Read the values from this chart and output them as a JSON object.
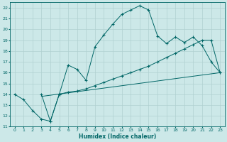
{
  "xlabel": "Humidex (Indice chaleur)",
  "bg_color": "#cce8e8",
  "grid_color": "#b0d0d0",
  "line_color": "#006666",
  "xlim": [
    -0.5,
    23.5
  ],
  "ylim": [
    11,
    22.5
  ],
  "xticks": [
    0,
    1,
    2,
    3,
    4,
    5,
    6,
    7,
    8,
    9,
    10,
    11,
    12,
    13,
    14,
    15,
    16,
    17,
    18,
    19,
    20,
    21,
    22,
    23
  ],
  "yticks": [
    11,
    12,
    13,
    14,
    15,
    16,
    17,
    18,
    19,
    20,
    21,
    22
  ],
  "line1_x": [
    0,
    1,
    2,
    3,
    4,
    5,
    6,
    7,
    8,
    9,
    10,
    11,
    12,
    13,
    14,
    15,
    16,
    17,
    18,
    19,
    20,
    21,
    22,
    23
  ],
  "line1_y": [
    14.0,
    13.5,
    12.5,
    11.7,
    11.5,
    14.0,
    16.7,
    16.3,
    15.3,
    18.4,
    19.5,
    20.5,
    21.4,
    21.8,
    22.2,
    21.8,
    19.4,
    18.7,
    19.3,
    18.8,
    19.3,
    18.5,
    17.0,
    16.0
  ],
  "line2_x": [
    3,
    4,
    5,
    6,
    7,
    8,
    9,
    10,
    11,
    12,
    13,
    14,
    15,
    16,
    17,
    18,
    19,
    20,
    21,
    22,
    23
  ],
  "line2_y": [
    14.0,
    11.5,
    14.0,
    14.2,
    14.3,
    14.5,
    14.8,
    15.1,
    15.4,
    15.7,
    16.0,
    16.3,
    16.6,
    17.0,
    17.4,
    17.8,
    18.2,
    18.6,
    19.0,
    19.0,
    16.0
  ],
  "line3_x": [
    3,
    23
  ],
  "line3_y": [
    13.8,
    16.0
  ]
}
